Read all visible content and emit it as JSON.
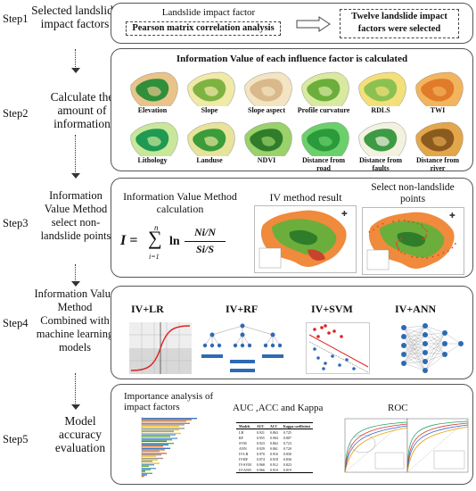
{
  "steps": [
    {
      "tag": "Step1",
      "label": "Selected landslide impact factors"
    },
    {
      "tag": "Step2",
      "label": "Calculate the amount of information"
    },
    {
      "tag": "Step3",
      "label": "Information Value Method select non-landslide points"
    },
    {
      "tag": "Step4",
      "label": "Information Value Method Combined with machine learning models"
    },
    {
      "tag": "Step5",
      "label": "Model accuracy evaluation"
    }
  ],
  "step1": {
    "factor_title": "Landslide impact factor",
    "pearson": "Pearson matrix correlation analysis",
    "result": "Twelve landslide impact factors were selected"
  },
  "step2": {
    "title": "Information Value of each influence factor is calculated",
    "factors": [
      "Elevation",
      "Slope",
      "Slope aspect",
      "Profile curvature",
      "RDLS",
      "TWI",
      "Lithology",
      "Landuse",
      "NDVI",
      "Distance from road",
      "Distance from faults",
      "Distance from river"
    ]
  },
  "step3": {
    "calc_title": "Information Value Method calculation",
    "formula_lhs": "I =",
    "sum_top": "n",
    "sum_bottom": "i=1",
    "ln": "ln",
    "numerator": "Ni/N",
    "denominator": "Si/S",
    "iv_result": "IV method result",
    "select_title": "Select non-landslide points"
  },
  "step4": {
    "models": [
      "IV+LR",
      "IV+RF",
      "IV+SVM",
      "IV+ANN"
    ]
  },
  "step5": {
    "importance": "Importance analysis of impact factors",
    "auc_title": "AUC ,ACC and Kappa",
    "roc_title": "ROC",
    "table_header": [
      "Models",
      "AUC",
      "ACC",
      "Kappa coefficient"
    ],
    "table_rows": [
      [
        "LR",
        "0.921",
        "0.863",
        "0.725"
      ],
      [
        "RF",
        "0.955",
        "0.904",
        "0.807"
      ],
      [
        "SVM",
        "0.923",
        "0.862",
        "0.723"
      ],
      [
        "ANN",
        "0.929",
        "0.861",
        "0.720"
      ],
      [
        "IV-LR",
        "0.970",
        "0.916",
        "0.830"
      ],
      [
        "IV-RF",
        "0.974",
        "0.918",
        "0.836"
      ],
      [
        "IV-SVM",
        "0.968",
        "0.912",
        "0.823"
      ],
      [
        "IV-ANN",
        "0.966",
        "0.910",
        "0.819"
      ]
    ]
  }
}
